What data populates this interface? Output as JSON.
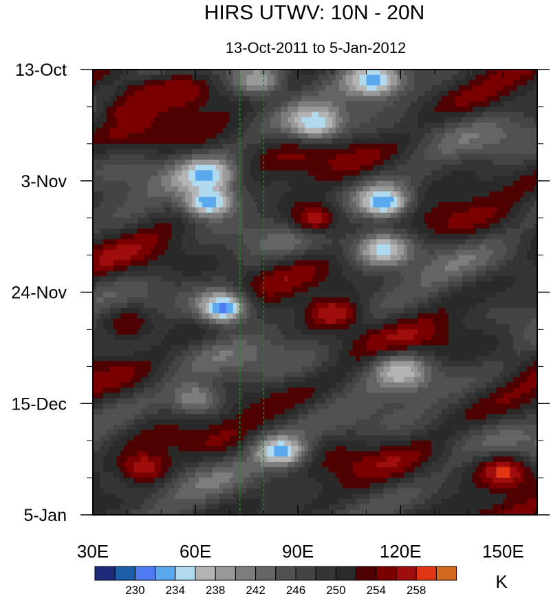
{
  "chart_data": {
    "type": "heatmap",
    "title": "HIRS UTWV: 10N - 20N",
    "subtitle": "13-Oct-2011 to 5-Jan-2012",
    "x_axis": {
      "range": [
        30,
        160
      ],
      "ticks": [
        30,
        60,
        90,
        120,
        150
      ],
      "tick_labels": [
        "30E",
        "60E",
        "90E",
        "120E",
        "150E"
      ]
    },
    "y_axis": {
      "range_days": [
        0,
        84
      ],
      "ticks": [
        0,
        21,
        42,
        63,
        84
      ],
      "tick_labels": [
        "13-Oct",
        "3-Nov",
        "24-Nov",
        "15-Dec",
        "5-Jan"
      ]
    },
    "reference_lines": [
      73,
      80
    ],
    "colorbar": {
      "unit": "K",
      "levels": [
        228,
        230,
        232,
        234,
        236,
        238,
        240,
        242,
        244,
        246,
        248,
        250,
        252,
        254,
        256,
        258,
        260
      ],
      "labeled_levels": [
        230,
        234,
        238,
        242,
        246,
        250,
        254,
        258
      ],
      "colors": [
        "#1f2a7a",
        "#1c5ea8",
        "#4f7bf2",
        "#5aa8ee",
        "#b0dbee",
        "#b4b4b4",
        "#999999",
        "#7d7d7d",
        "#646464",
        "#515151",
        "#444444",
        "#353535",
        "#2a2a2a",
        "#4f0000",
        "#7a0000",
        "#a00d0d",
        "#e13512",
        "#d2691e"
      ]
    },
    "features": [
      {
        "lon": 45,
        "day": 5,
        "value": 255
      },
      {
        "lon": 55,
        "day": 4,
        "value": 256
      },
      {
        "lon": 40,
        "day": 8,
        "value": 255
      },
      {
        "lon": 78,
        "day": 2,
        "value": 238
      },
      {
        "lon": 112,
        "day": 2,
        "value": 233
      },
      {
        "lon": 95,
        "day": 10,
        "value": 234
      },
      {
        "lon": 63,
        "day": 20,
        "value": 233
      },
      {
        "lon": 64,
        "day": 25,
        "value": 232
      },
      {
        "lon": 115,
        "day": 25,
        "value": 232
      },
      {
        "lon": 95,
        "day": 28,
        "value": 257
      },
      {
        "lon": 115,
        "day": 34,
        "value": 235
      },
      {
        "lon": 68,
        "day": 45,
        "value": 231
      },
      {
        "lon": 100,
        "day": 46,
        "value": 258
      },
      {
        "lon": 40,
        "day": 48,
        "value": 254
      },
      {
        "lon": 120,
        "day": 57,
        "value": 236
      },
      {
        "lon": 60,
        "day": 62,
        "value": 240
      },
      {
        "lon": 85,
        "day": 72,
        "value": 233
      },
      {
        "lon": 45,
        "day": 75,
        "value": 258
      },
      {
        "lon": 150,
        "day": 76,
        "value": 259
      }
    ]
  }
}
